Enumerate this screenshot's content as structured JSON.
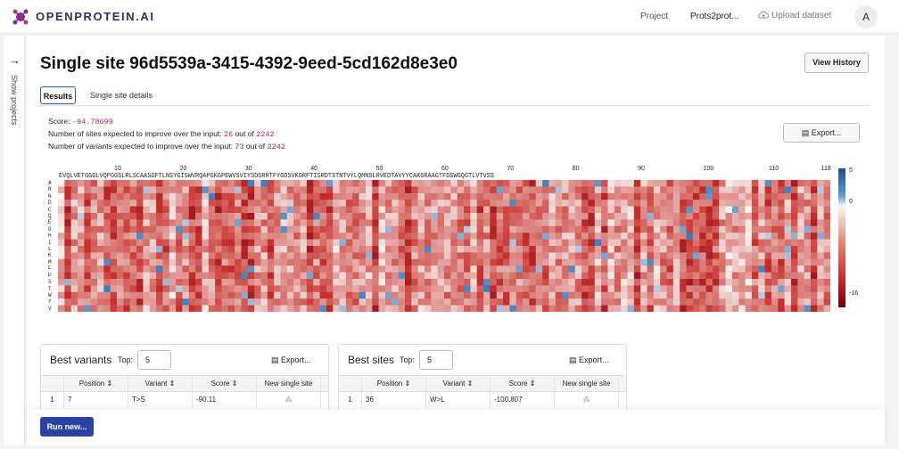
{
  "app": {
    "logo_text": "OPENPROTEIN.AI",
    "accent": "#2a43a2"
  },
  "nav": {
    "project": "Project",
    "project_name": "Prots2prot...",
    "upload": "Upload dataset",
    "avatar": "A"
  },
  "sidebar": {
    "label": "Show projects"
  },
  "page": {
    "title": "Single site 96d5539a-3415-4392-9eed-5cd162d8e3e0",
    "view_history": "View History"
  },
  "tabs": [
    {
      "label": "Results"
    },
    {
      "label": "Single site details"
    }
  ],
  "stats": {
    "score_label": "Score: ",
    "score": "-94.78699",
    "sites_label": "Number of sites expected to improve over the input: ",
    "sites": "26",
    "sites_of": " out of ",
    "sites_total": "2242",
    "variants_label": "Number of variants expected to improve over the input: ",
    "variants": "73",
    "variants_of": " out of ",
    "variants_total": "2242"
  },
  "export_label": "Export...",
  "heatmap": {
    "positions": [
      "10",
      "20",
      "30",
      "40",
      "50",
      "60",
      "70",
      "80",
      "90",
      "100",
      "110",
      "118"
    ],
    "sequence": "EVQLVETGGGLVQPGGSLRLSCAASGFTLNSYGISWVRQAPGKGPEWVSVIYSDGRRTFYGDSVKGRFTISRDTSTNTVYLQMNSLRVEDTAVYYCAKGRAAGTFDSWGQGTLVTVSS",
    "rows": [
      "A",
      "R",
      "N",
      "D",
      "C",
      "Q",
      "E",
      "G",
      "H",
      "I",
      "L",
      "K",
      "M",
      "F",
      "P",
      "S",
      "T",
      "W",
      "Y",
      "V"
    ],
    "colorbar": {
      "max": "5",
      "mid": "0",
      "min": "-16"
    }
  },
  "best_variants": {
    "title": "Best variants",
    "top_label": "Top:",
    "top_value": "5",
    "export": "Export...",
    "columns": [
      "Position",
      "Variant",
      "Score",
      "New single site"
    ],
    "rows": [
      {
        "index": "1",
        "position": "7",
        "variant": "T>S",
        "score": "-90.11"
      }
    ]
  },
  "best_sites": {
    "title": "Best sites",
    "top_label": "Top:",
    "top_value": "5",
    "export": "Export...",
    "columns": [
      "Position",
      "Variant",
      "Score",
      "New single site"
    ],
    "rows": [
      {
        "index": "1",
        "position": "36",
        "variant": "W>L",
        "score": "-100.807"
      }
    ]
  },
  "run_button": "Run new..."
}
